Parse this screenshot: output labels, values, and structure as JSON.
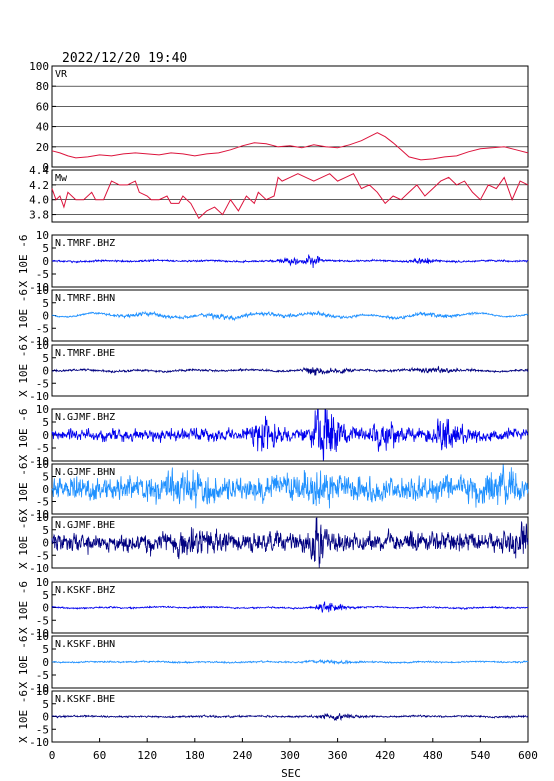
{
  "header": {
    "timestamp": "2022/12/20 19:40"
  },
  "chart_data": {
    "type": "line",
    "x_unit_label": "SEC",
    "xlim": [
      0,
      600
    ],
    "x_ticks": [
      0,
      60,
      120,
      180,
      240,
      300,
      360,
      420,
      480,
      540,
      600
    ],
    "colors": {
      "axis": "#000000",
      "vr_mw": "#dc143c",
      "bhz": "#0000ee",
      "bhn": "#1e90ff",
      "bhe": "#000080"
    },
    "panels": [
      {
        "kind": "VR",
        "label": "VR",
        "ylim": [
          0,
          100
        ],
        "y_ticks": [
          0,
          20,
          40,
          60,
          80,
          100
        ],
        "grid": true,
        "points": [
          [
            0,
            16
          ],
          [
            10,
            14
          ],
          [
            20,
            11
          ],
          [
            30,
            9
          ],
          [
            45,
            10
          ],
          [
            60,
            12
          ],
          [
            75,
            11
          ],
          [
            90,
            13
          ],
          [
            105,
            14
          ],
          [
            120,
            13
          ],
          [
            135,
            12
          ],
          [
            150,
            14
          ],
          [
            165,
            13
          ],
          [
            180,
            11
          ],
          [
            195,
            13
          ],
          [
            210,
            14
          ],
          [
            225,
            17
          ],
          [
            240,
            21
          ],
          [
            255,
            24
          ],
          [
            270,
            23
          ],
          [
            285,
            20
          ],
          [
            300,
            21
          ],
          [
            315,
            19
          ],
          [
            330,
            22
          ],
          [
            345,
            20
          ],
          [
            360,
            19
          ],
          [
            375,
            22
          ],
          [
            390,
            26
          ],
          [
            400,
            30
          ],
          [
            410,
            34
          ],
          [
            420,
            30
          ],
          [
            430,
            24
          ],
          [
            440,
            17
          ],
          [
            450,
            10
          ],
          [
            465,
            7
          ],
          [
            480,
            8
          ],
          [
            495,
            10
          ],
          [
            510,
            11
          ],
          [
            525,
            15
          ],
          [
            540,
            18
          ],
          [
            555,
            19
          ],
          [
            570,
            20
          ],
          [
            585,
            17
          ],
          [
            600,
            14
          ]
        ]
      },
      {
        "kind": "Mw",
        "label": "Mw",
        "ylim": [
          3.7,
          4.4
        ],
        "y_ticks": [
          3.8,
          4.0,
          4.2,
          4.4
        ],
        "grid": true,
        "points": [
          [
            0,
            4.15
          ],
          [
            5,
            4.0
          ],
          [
            10,
            4.05
          ],
          [
            15,
            3.9
          ],
          [
            20,
            4.1
          ],
          [
            25,
            4.05
          ],
          [
            30,
            4.0
          ],
          [
            40,
            4.0
          ],
          [
            50,
            4.1
          ],
          [
            55,
            4.0
          ],
          [
            65,
            4.0
          ],
          [
            75,
            4.25
          ],
          [
            85,
            4.2
          ],
          [
            95,
            4.2
          ],
          [
            105,
            4.25
          ],
          [
            110,
            4.1
          ],
          [
            120,
            4.05
          ],
          [
            125,
            4.0
          ],
          [
            135,
            4.0
          ],
          [
            145,
            4.05
          ],
          [
            150,
            3.95
          ],
          [
            160,
            3.95
          ],
          [
            165,
            4.05
          ],
          [
            175,
            3.95
          ],
          [
            185,
            3.75
          ],
          [
            195,
            3.85
          ],
          [
            205,
            3.9
          ],
          [
            215,
            3.8
          ],
          [
            225,
            4.0
          ],
          [
            235,
            3.85
          ],
          [
            245,
            4.05
          ],
          [
            255,
            3.95
          ],
          [
            260,
            4.1
          ],
          [
            270,
            4.0
          ],
          [
            280,
            4.05
          ],
          [
            285,
            4.3
          ],
          [
            290,
            4.25
          ],
          [
            300,
            4.3
          ],
          [
            310,
            4.35
          ],
          [
            320,
            4.3
          ],
          [
            330,
            4.25
          ],
          [
            340,
            4.3
          ],
          [
            350,
            4.35
          ],
          [
            360,
            4.25
          ],
          [
            370,
            4.3
          ],
          [
            380,
            4.35
          ],
          [
            390,
            4.15
          ],
          [
            400,
            4.2
          ],
          [
            410,
            4.1
          ],
          [
            420,
            3.95
          ],
          [
            430,
            4.05
          ],
          [
            440,
            4.0
          ],
          [
            450,
            4.1
          ],
          [
            460,
            4.2
          ],
          [
            470,
            4.05
          ],
          [
            480,
            4.15
          ],
          [
            490,
            4.25
          ],
          [
            500,
            4.3
          ],
          [
            510,
            4.2
          ],
          [
            520,
            4.25
          ],
          [
            530,
            4.1
          ],
          [
            540,
            4.0
          ],
          [
            550,
            4.2
          ],
          [
            560,
            4.15
          ],
          [
            570,
            4.3
          ],
          [
            580,
            4.0
          ],
          [
            590,
            4.25
          ],
          [
            600,
            4.2
          ]
        ]
      },
      {
        "kind": "wave",
        "label": "N.TMRF.BHZ",
        "comp": "bhz",
        "ylim": [
          -10,
          10
        ],
        "y_ticks": [
          -10,
          -5,
          0,
          5,
          10
        ],
        "ylabel": "X 10E -6",
        "bursts": [
          {
            "t": 300,
            "w": 10,
            "a": 1.2
          },
          {
            "t": 328,
            "w": 6,
            "a": 2.5
          },
          {
            "t": 468,
            "w": 10,
            "a": 1.0
          }
        ],
        "base": 0.35,
        "low": 0.25
      },
      {
        "kind": "wave",
        "label": "N.TMRF.BHN",
        "comp": "bhn",
        "ylim": [
          -10,
          10
        ],
        "y_ticks": [
          -10,
          -5,
          0,
          5,
          10
        ],
        "ylabel": "X 10E -6",
        "bursts": [
          {
            "t": 120,
            "w": 30,
            "a": 0.6
          },
          {
            "t": 210,
            "w": 20,
            "a": 0.6
          },
          {
            "t": 300,
            "w": 60,
            "a": 0.5
          },
          {
            "t": 480,
            "w": 30,
            "a": 0.6
          }
        ],
        "base": 0.3,
        "low": 1.0
      },
      {
        "kind": "wave",
        "label": "N.TMRF.BHE",
        "comp": "bhe",
        "ylim": [
          -10,
          10
        ],
        "y_ticks": [
          -10,
          -5,
          0,
          5,
          10
        ],
        "ylabel": "X 10E -6",
        "bursts": [
          {
            "t": 330,
            "w": 8,
            "a": 1.6
          },
          {
            "t": 360,
            "w": 12,
            "a": 1.0
          },
          {
            "t": 480,
            "w": 20,
            "a": 0.8
          }
        ],
        "base": 0.4,
        "low": 0.4
      },
      {
        "kind": "wave",
        "label": "N.GJMF.BHZ",
        "comp": "bhz",
        "ylim": [
          -10,
          10
        ],
        "y_ticks": [
          -10,
          -5,
          0,
          5,
          10
        ],
        "ylabel": "X 10E -6",
        "bursts": [
          {
            "t": 270,
            "w": 10,
            "a": 6
          },
          {
            "t": 340,
            "w": 8,
            "a": 9
          },
          {
            "t": 355,
            "w": 8,
            "a": 6
          },
          {
            "t": 500,
            "w": 12,
            "a": 4
          },
          {
            "t": 420,
            "w": 12,
            "a": 4
          }
        ],
        "base": 2.4,
        "low": 0.5
      },
      {
        "kind": "wave",
        "label": "N.GJMF.BHN",
        "comp": "bhn",
        "ylim": [
          -10,
          10
        ],
        "y_ticks": [
          -10,
          -5,
          0,
          5,
          10
        ],
        "ylabel": "X 10E -6",
        "bursts": [
          {
            "t": 160,
            "w": 20,
            "a": 3
          },
          {
            "t": 330,
            "w": 20,
            "a": 3
          },
          {
            "t": 560,
            "w": 20,
            "a": 3
          }
        ],
        "base": 4.8,
        "low": 1.0
      },
      {
        "kind": "wave",
        "label": "N.GJMF.BHE",
        "comp": "bhe",
        "ylim": [
          -10,
          10
        ],
        "y_ticks": [
          -10,
          -5,
          0,
          5,
          10
        ],
        "ylabel": "X 10E -6",
        "bursts": [
          {
            "t": 335,
            "w": 5,
            "a": 8
          },
          {
            "t": 180,
            "w": 20,
            "a": 3
          },
          {
            "t": 590,
            "w": 10,
            "a": 4
          }
        ],
        "base": 3.8,
        "low": 0.5
      },
      {
        "kind": "wave",
        "label": "N.KSKF.BHZ",
        "comp": "bhz",
        "ylim": [
          -10,
          10
        ],
        "y_ticks": [
          -10,
          -5,
          0,
          5,
          10
        ],
        "ylabel": "X 10E -6",
        "bursts": [
          {
            "t": 346,
            "w": 8,
            "a": 1.8
          },
          {
            "t": 360,
            "w": 10,
            "a": 1.0
          }
        ],
        "base": 0.3,
        "low": 0.3
      },
      {
        "kind": "wave",
        "label": "N.KSKF.BHN",
        "comp": "bhn",
        "ylim": [
          -10,
          10
        ],
        "y_ticks": [
          -10,
          -5,
          0,
          5,
          10
        ],
        "ylabel": "X 10E -6",
        "bursts": [
          {
            "t": 350,
            "w": 20,
            "a": 0.5
          }
        ],
        "base": 0.3,
        "low": 0.2
      },
      {
        "kind": "wave",
        "label": "N.KSKF.BHE",
        "comp": "bhe",
        "ylim": [
          -10,
          10
        ],
        "y_ticks": [
          -10,
          -5,
          0,
          5,
          10
        ],
        "ylabel": "X 10E -6",
        "bursts": [
          {
            "t": 360,
            "w": 15,
            "a": 1.2
          }
        ],
        "base": 0.35,
        "low": 0.2
      }
    ]
  }
}
